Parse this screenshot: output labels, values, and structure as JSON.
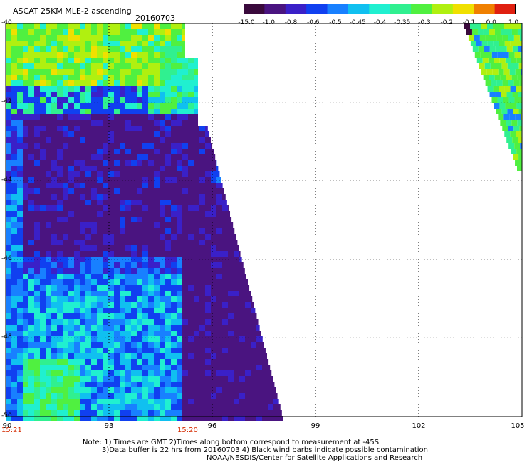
{
  "header": {
    "title": "ASCAT 25KM MLE-2 ascending",
    "date": "20160703"
  },
  "colorbar": {
    "labels": [
      "-15.0",
      "-1.0",
      "-0.8",
      "-0.6",
      "-0.5",
      "-0.45",
      "-0.4",
      "-0.35",
      "-0.3",
      "-0.2",
      "-0.1",
      "0.0",
      "1.0"
    ],
    "colors": [
      "#3a0a3c",
      "#4a1480",
      "#3a20c8",
      "#1040f0",
      "#1880ff",
      "#10c0f0",
      "#20f0d0",
      "#30f090",
      "#50f040",
      "#b0f010",
      "#f0e000",
      "#f08000",
      "#e02010"
    ]
  },
  "map": {
    "lat_labels": [
      "-40",
      "-42",
      "-44",
      "-46",
      "-48",
      "-50"
    ],
    "lon_labels": [
      "90",
      "93",
      "96",
      "99",
      "102",
      "105"
    ],
    "time_labels": [
      "15:21",
      "15:20"
    ]
  },
  "notes": {
    "line1": "Note: 1) Times are GMT 2)Times along bottom correspond to measurement at -45S",
    "line2": "3)Data buffer is 22 hrs from 20160703 4) Black wind barbs indicate possible contamination",
    "line3": "NOAA/NESDIS/Center for Satellite Applications and Research"
  }
}
